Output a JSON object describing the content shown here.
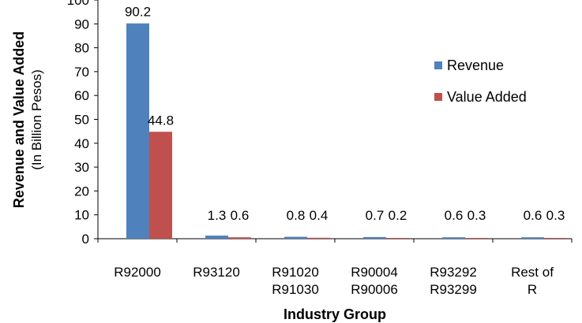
{
  "chart_data": {
    "type": "bar",
    "categories": [
      [
        "R92000"
      ],
      [
        "R93120"
      ],
      [
        "R91020",
        "R91030"
      ],
      [
        "R90004",
        "R90006"
      ],
      [
        "R93292",
        "R93299"
      ],
      [
        "Rest of",
        "R"
      ]
    ],
    "series": [
      {
        "name": "Revenue",
        "values": [
          90.2,
          1.3,
          0.8,
          0.7,
          0.6,
          0.6
        ],
        "color": "#4F81BD"
      },
      {
        "name": "Value Added",
        "values": [
          44.8,
          0.6,
          0.4,
          0.2,
          0.3,
          0.3
        ],
        "color": "#C0504D"
      }
    ],
    "data_labels": [
      [
        "90.2",
        "44.8"
      ],
      [
        "1.3",
        "0.6"
      ],
      [
        "0.8",
        "0.4"
      ],
      [
        "0.7",
        "0.2"
      ],
      [
        "0.6",
        "0.3"
      ],
      [
        "0.6",
        "0.3"
      ]
    ],
    "yticks": [
      0,
      10,
      20,
      30,
      40,
      50,
      60,
      70,
      80,
      90,
      100
    ],
    "ylim": [
      0,
      100
    ],
    "xlabel": "Industry Group",
    "ylabel": "Revenue and Value Added",
    "ylabel_sub": "(In Billion Pesos)",
    "legend_position": "right",
    "grid": false
  }
}
